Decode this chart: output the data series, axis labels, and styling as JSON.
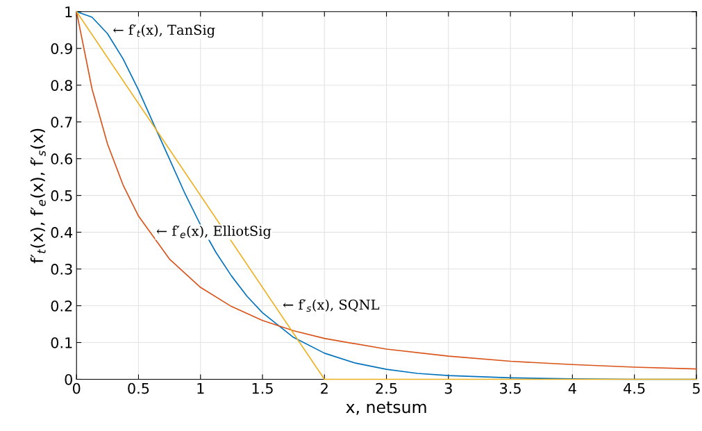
{
  "chart_data": {
    "type": "line",
    "xlabel": "x, netsum",
    "ylabel": "f′$_{t}$(x), f′$_{e}$(x), f′$_{s}$(x)",
    "xlim": [
      0,
      5
    ],
    "ylim": [
      0,
      1
    ],
    "xticks": [
      0,
      0.5,
      1,
      1.5,
      2,
      2.5,
      3,
      3.5,
      4,
      4.5,
      5
    ],
    "yticks": [
      0,
      0.1,
      0.2,
      0.3,
      0.4,
      0.5,
      0.6,
      0.7,
      0.8,
      0.9,
      1
    ],
    "grid": true,
    "marker": "none",
    "line_style": "solid",
    "series": [
      {
        "color": "#0072bd",
        "x": [
          0,
          0.125,
          0.25,
          0.375,
          0.5,
          0.625,
          0.75,
          0.875,
          1,
          1.125,
          1.25,
          1.375,
          1.5,
          1.75,
          2,
          2.25,
          2.5,
          2.75,
          3,
          3.5,
          4,
          4.5,
          5
        ],
        "values": [
          1,
          0.985,
          0.94,
          0.872,
          0.787,
          0.692,
          0.599,
          0.505,
          0.42,
          0.345,
          0.281,
          0.226,
          0.181,
          0.114,
          0.071,
          0.044,
          0.027,
          0.016,
          0.01,
          0.004,
          0.001,
          0,
          0
        ]
      },
      {
        "color": "#d95319",
        "x": [
          0,
          0.125,
          0.25,
          0.375,
          0.5,
          0.75,
          1,
          1.25,
          1.5,
          1.75,
          2,
          2.5,
          3,
          3.5,
          4,
          4.5,
          5
        ],
        "values": [
          1,
          0.79,
          0.64,
          0.529,
          0.444,
          0.327,
          0.25,
          0.198,
          0.16,
          0.132,
          0.111,
          0.082,
          0.063,
          0.049,
          0.04,
          0.033,
          0.028
        ]
      },
      {
        "color": "#edb120",
        "x": [
          0,
          2,
          5
        ],
        "values": [
          1,
          0,
          0
        ]
      }
    ],
    "annotations": [
      {
        "text": "← f′$_{t}$(x), TanSig",
        "x": 0.23,
        "y": 0.947
      },
      {
        "text": "← f′$_{e}$(x), ElliotSig",
        "x": 0.58,
        "y": 0.4
      },
      {
        "text": "← f′$_{s}$(x), SQNL",
        "x": 1.6,
        "y": 0.2
      }
    ]
  }
}
